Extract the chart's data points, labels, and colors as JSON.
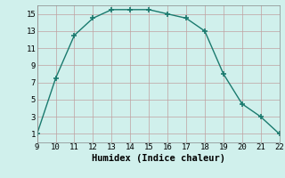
{
  "x": [
    9,
    10,
    11,
    12,
    13,
    14,
    15,
    16,
    17,
    18,
    19,
    20,
    21,
    22
  ],
  "y": [
    1,
    7.5,
    12.5,
    14.5,
    15.5,
    15.5,
    15.5,
    15.0,
    14.5,
    13.0,
    8.0,
    4.5,
    3.0,
    1.0
  ],
  "xlabel": "Humidex (Indice chaleur)",
  "xlim": [
    9,
    22
  ],
  "ylim": [
    0,
    16
  ],
  "xticks": [
    9,
    10,
    11,
    12,
    13,
    14,
    15,
    16,
    17,
    18,
    19,
    20,
    21,
    22
  ],
  "yticks": [
    1,
    3,
    5,
    7,
    9,
    11,
    13,
    15
  ],
  "line_color": "#1a7a6e",
  "bg_color": "#d0f0ec",
  "grid_color": "#c0a0a0",
  "marker": "+",
  "linewidth": 1.0,
  "markersize": 4,
  "markeredgewidth": 1.2,
  "tick_fontsize": 6.5,
  "xlabel_fontsize": 7.5
}
